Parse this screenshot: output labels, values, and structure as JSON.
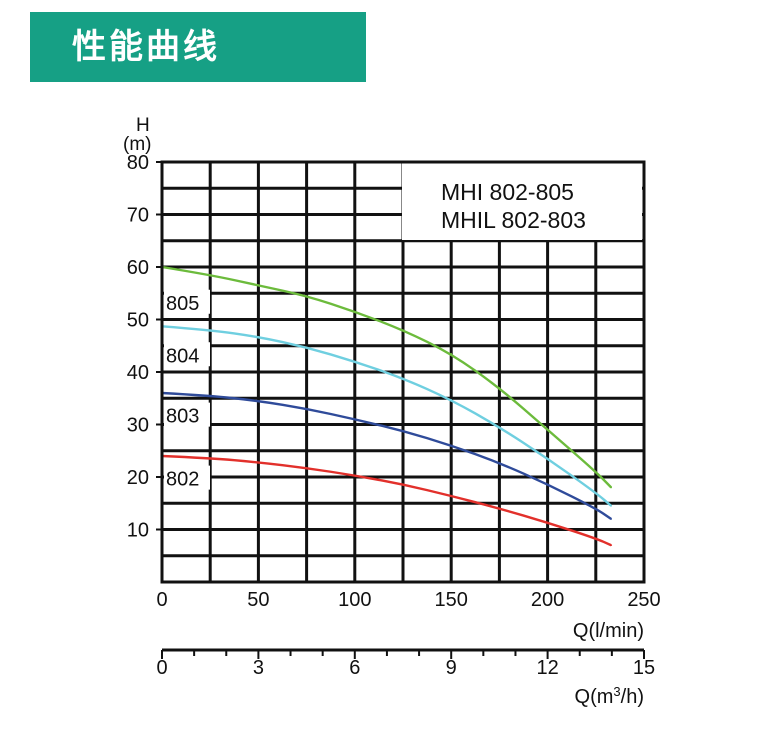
{
  "header": {
    "title": "性能曲线",
    "background": "#16a085"
  },
  "chart_data": {
    "type": "line",
    "title": "",
    "model_labels": [
      "MHI   802-805",
      "MHIL 802-803"
    ],
    "y_axis": {
      "unit_top": "H",
      "unit_bottom": "(m)",
      "lim": [
        0,
        80
      ],
      "ticks": [
        80,
        70,
        60,
        50,
        40,
        30,
        20,
        10
      ]
    },
    "x_axis_flow_lmin": {
      "label": "Q(l/min)",
      "lim": [
        0,
        250
      ],
      "ticks": [
        0,
        50,
        100,
        150,
        200,
        250
      ]
    },
    "x_axis_flow_m3h": {
      "label_prefix": "Q(m",
      "label_sup": "3",
      "label_suffix": "/h)",
      "lim": [
        0,
        15
      ],
      "ticks": [
        0,
        3,
        6,
        9,
        12,
        15
      ]
    },
    "grid": true,
    "series": [
      {
        "name": "805",
        "color": "#6cbb3c",
        "x": [
          0,
          25,
          50,
          75,
          100,
          125,
          150,
          175,
          200,
          225,
          233
        ],
        "y": [
          60,
          58.5,
          56.5,
          54.5,
          51.5,
          48,
          43.5,
          37,
          29,
          21,
          18
        ]
      },
      {
        "name": "804",
        "color": "#6fcfe0",
        "x": [
          0,
          25,
          50,
          75,
          100,
          125,
          150,
          175,
          200,
          225,
          233
        ],
        "y": [
          48.7,
          48,
          46.7,
          44.7,
          42,
          38.8,
          34.7,
          29.5,
          23.5,
          17,
          14.5
        ]
      },
      {
        "name": "803",
        "color": "#2f4b9a",
        "x": [
          0,
          25,
          50,
          75,
          100,
          125,
          150,
          175,
          200,
          225,
          233
        ],
        "y": [
          36,
          35.5,
          34.5,
          33,
          31,
          28.8,
          26,
          22.7,
          18.6,
          14,
          12
        ]
      },
      {
        "name": "802",
        "color": "#e2302b",
        "x": [
          0,
          25,
          50,
          75,
          100,
          125,
          150,
          175,
          200,
          225,
          233
        ],
        "y": [
          24,
          23.6,
          22.8,
          21.7,
          20.3,
          18.6,
          16.4,
          14,
          11.3,
          8.3,
          7
        ]
      }
    ]
  }
}
